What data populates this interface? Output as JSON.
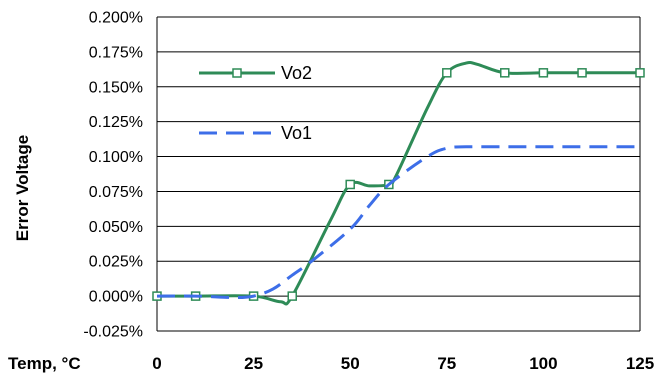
{
  "chart_data": {
    "type": "line",
    "title": "",
    "xlabel": "Temp, °C",
    "ylabel": "Error Voltage",
    "xlim": [
      0,
      125
    ],
    "ylim": [
      -0.025,
      0.2
    ],
    "x_ticks": [
      "0",
      "25",
      "50",
      "75",
      "100",
      "125"
    ],
    "y_ticks": [
      "-0.025%",
      "0.000%",
      "0.025%",
      "0.050%",
      "0.075%",
      "0.100%",
      "0.125%",
      "0.150%",
      "0.175%",
      "0.200%"
    ],
    "grid": "horizontal",
    "legend_position": "top-left-inside",
    "series": [
      {
        "name": "Vo2",
        "color": "#2e8b57",
        "style": "solid-with-square-markers",
        "x": [
          0,
          10,
          25,
          32,
          35,
          45,
          50,
          55,
          60,
          62,
          70,
          75,
          80,
          83,
          90,
          100,
          110,
          125
        ],
        "y": [
          0.0,
          0.0,
          0.0,
          -0.004,
          0.0,
          0.055,
          0.08,
          0.079,
          0.08,
          0.087,
          0.135,
          0.16,
          0.167,
          0.166,
          0.16,
          0.16,
          0.16,
          0.16
        ],
        "markers_x": [
          0,
          10,
          25,
          35,
          50,
          60,
          75,
          90,
          100,
          110,
          125
        ]
      },
      {
        "name": "Vo1",
        "color": "#3d6ee8",
        "style": "dashed",
        "x": [
          0,
          10,
          20,
          25,
          30,
          35,
          40,
          50,
          55,
          60,
          70,
          75,
          80,
          90,
          100,
          110,
          125
        ],
        "y": [
          0.0,
          0.0,
          -0.001,
          0.0,
          0.005,
          0.015,
          0.025,
          0.048,
          0.065,
          0.08,
          0.1,
          0.106,
          0.107,
          0.107,
          0.107,
          0.107,
          0.107
        ]
      }
    ]
  }
}
